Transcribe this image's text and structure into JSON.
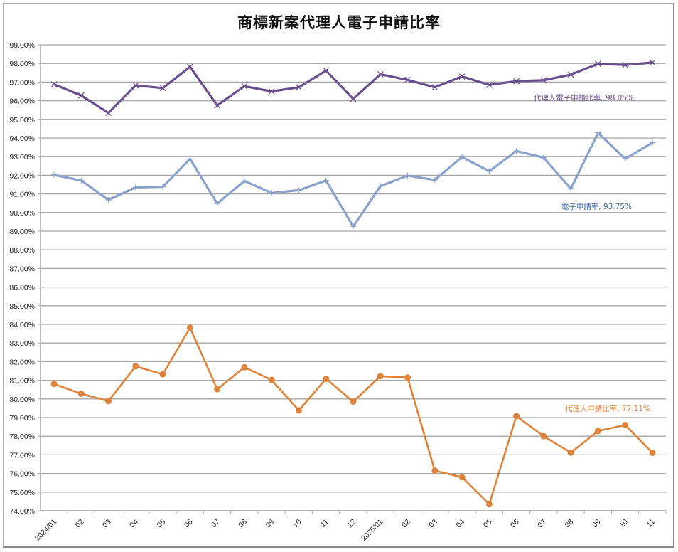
{
  "chart_data": {
    "type": "line",
    "title": "商標新案代理人電子申請比率",
    "xlabel": "",
    "ylabel": "",
    "ylim": [
      0.74,
      0.99
    ],
    "yticks": [
      "99.00%",
      "98.00%",
      "97.00%",
      "96.00%",
      "95.00%",
      "94.00%",
      "93.00%",
      "92.00%",
      "91.00%",
      "90.00%",
      "89.00%",
      "88.00%",
      "87.00%",
      "86.00%",
      "85.00%",
      "84.00%",
      "83.00%",
      "82.00%",
      "81.00%",
      "80.00%",
      "79.00%",
      "78.00%",
      "77.00%",
      "76.00%",
      "75.00%",
      "74.00%"
    ],
    "grid": true,
    "legend": "inline end labels",
    "categories": [
      "2024/01",
      "02",
      "03",
      "04",
      "05",
      "06",
      "07",
      "08",
      "09",
      "10",
      "11",
      "12",
      "2025/01",
      "02",
      "03",
      "04",
      "05",
      "06",
      "07",
      "08",
      "09",
      "10",
      "11"
    ],
    "series": [
      {
        "name": "代理人電子申請比率",
        "color": "#6a4f8e",
        "marker": "x",
        "end_label": "代理人電子申請比率, 98.05%",
        "values": [
          96.88,
          96.28,
          95.35,
          96.82,
          96.68,
          97.82,
          95.75,
          96.78,
          96.5,
          96.72,
          97.62,
          96.1,
          97.42,
          97.12,
          96.72,
          97.3,
          96.85,
          97.05,
          97.1,
          97.4,
          97.98,
          97.92,
          98.05
        ]
      },
      {
        "name": "電子申請率",
        "color": "#8aa2cc",
        "marker": "+",
        "end_label": "電子申請率, 93.75%",
        "values": [
          92.02,
          91.72,
          90.68,
          91.35,
          91.38,
          92.88,
          90.48,
          91.7,
          91.05,
          91.2,
          91.72,
          89.25,
          91.42,
          91.98,
          91.75,
          92.98,
          92.22,
          93.3,
          92.95,
          91.28,
          94.28,
          92.88,
          93.75
        ]
      },
      {
        "name": "代理人申請比率",
        "color": "#e0833a",
        "marker": "circle",
        "end_label": "代理人申請比率, 77.11%",
        "values": [
          80.8,
          80.28,
          79.88,
          81.75,
          81.32,
          83.82,
          80.52,
          81.7,
          81.02,
          79.38,
          81.08,
          79.85,
          81.22,
          81.15,
          76.15,
          75.8,
          74.35,
          79.08,
          78.0,
          77.12,
          78.28,
          78.6,
          77.11
        ]
      }
    ]
  }
}
